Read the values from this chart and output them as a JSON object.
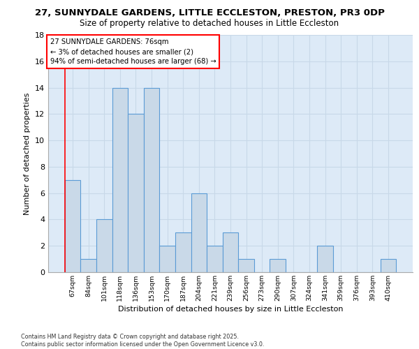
{
  "title1": "27, SUNNYDALE GARDENS, LITTLE ECCLESTON, PRESTON, PR3 0DP",
  "title2": "Size of property relative to detached houses in Little Eccleston",
  "xlabel": "Distribution of detached houses by size in Little Eccleston",
  "ylabel": "Number of detached properties",
  "categories": [
    "67sqm",
    "84sqm",
    "101sqm",
    "118sqm",
    "136sqm",
    "153sqm",
    "170sqm",
    "187sqm",
    "204sqm",
    "221sqm",
    "239sqm",
    "256sqm",
    "273sqm",
    "290sqm",
    "307sqm",
    "324sqm",
    "341sqm",
    "359sqm",
    "376sqm",
    "393sqm",
    "410sqm"
  ],
  "values": [
    7,
    1,
    4,
    14,
    12,
    14,
    2,
    3,
    6,
    2,
    3,
    1,
    0,
    1,
    0,
    0,
    2,
    0,
    0,
    0,
    1
  ],
  "bar_color": "#c9d9e8",
  "bar_edge_color": "#5b9bd5",
  "annotation_box_text": "27 SUNNYDALE GARDENS: 76sqm\n← 3% of detached houses are smaller (2)\n94% of semi-detached houses are larger (68) →",
  "ylim": [
    0,
    18
  ],
  "yticks": [
    0,
    2,
    4,
    6,
    8,
    10,
    12,
    14,
    16,
    18
  ],
  "grid_color": "#c8d8e8",
  "bg_color": "#ddeaf7",
  "footer": "Contains HM Land Registry data © Crown copyright and database right 2025.\nContains public sector information licensed under the Open Government Licence v3.0."
}
